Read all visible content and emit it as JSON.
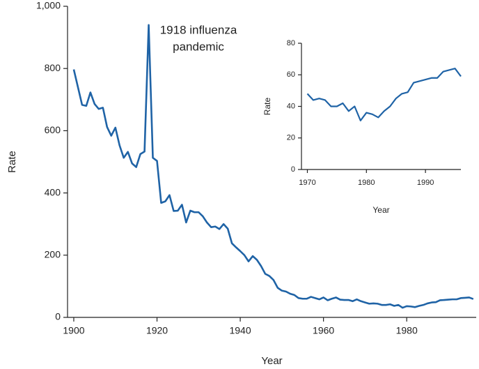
{
  "chart_data": [
    {
      "type": "line",
      "x_label": "Year",
      "y_label": "Rate",
      "annotation": [
        "1918 influenza",
        "pandemic"
      ],
      "xlim": [
        1898.5,
        1996.7
      ],
      "xticks": [
        1900,
        1920,
        1940,
        1960,
        1980
      ],
      "ylim": [
        0,
        1000
      ],
      "yticks": [
        0,
        200,
        400,
        600,
        800,
        {
          "value": 1000,
          "label": "1,000"
        }
      ],
      "series": [
        {
          "color": "#1f63a6",
          "x": [
            1900,
            1901,
            1902,
            1903,
            1904,
            1905,
            1906,
            1907,
            1908,
            1909,
            1910,
            1911,
            1912,
            1913,
            1914,
            1915,
            1916,
            1917,
            1918,
            1919,
            1920,
            1921,
            1922,
            1923,
            1924,
            1925,
            1926,
            1927,
            1928,
            1929,
            1930,
            1931,
            1932,
            1933,
            1934,
            1935,
            1936,
            1937,
            1938,
            1939,
            1940,
            1941,
            1942,
            1943,
            1944,
            1945,
            1946,
            1947,
            1948,
            1949,
            1950,
            1951,
            1952,
            1953,
            1954,
            1955,
            1956,
            1957,
            1958,
            1959,
            1960,
            1961,
            1962,
            1963,
            1964,
            1965,
            1966,
            1967,
            1968,
            1969,
            1970,
            1971,
            1972,
            1973,
            1974,
            1975,
            1976,
            1977,
            1978,
            1979,
            1980,
            1981,
            1982,
            1983,
            1984,
            1985,
            1986,
            1987,
            1988,
            1989,
            1990,
            1991,
            1992,
            1993,
            1994,
            1995,
            1996
          ],
          "values": [
            797,
            740,
            683,
            680,
            723,
            686,
            670,
            674,
            612,
            584,
            610,
            553,
            513,
            532,
            495,
            483,
            525,
            533,
            940,
            513,
            503,
            368,
            373,
            393,
            342,
            343,
            362,
            305,
            343,
            338,
            338,
            325,
            305,
            290,
            292,
            284,
            300,
            285,
            238,
            225,
            213,
            200,
            180,
            197,
            185,
            165,
            140,
            133,
            120,
            95,
            86,
            83,
            76,
            72,
            62,
            60,
            60,
            66,
            62,
            58,
            64,
            55,
            60,
            64,
            57,
            56,
            56,
            52,
            58,
            52,
            48,
            44,
            45,
            44,
            40,
            40,
            42,
            37,
            40,
            31,
            36,
            35,
            33,
            37,
            40,
            45,
            48,
            49,
            55,
            56,
            57,
            58,
            58,
            62,
            63,
            64,
            59
          ]
        }
      ]
    },
    {
      "type": "line",
      "x_label": "Year",
      "y_label": "Rate",
      "xlim": [
        1969,
        1996
      ],
      "xticks": [
        1970,
        1980,
        1990
      ],
      "ylim": [
        0,
        80
      ],
      "yticks": [
        0,
        20,
        40,
        60,
        80
      ],
      "series": [
        {
          "color": "#1f63a6",
          "x": [
            1970,
            1971,
            1972,
            1973,
            1974,
            1975,
            1976,
            1977,
            1978,
            1979,
            1980,
            1981,
            1982,
            1983,
            1984,
            1985,
            1986,
            1987,
            1988,
            1989,
            1990,
            1991,
            1992,
            1993,
            1994,
            1995,
            1996
          ],
          "values": [
            48,
            44,
            45,
            44,
            40,
            40,
            42,
            37,
            40,
            31,
            36,
            35,
            33,
            37,
            40,
            45,
            48,
            49,
            55,
            56,
            57,
            58,
            58,
            62,
            63,
            64,
            59
          ]
        }
      ]
    }
  ]
}
